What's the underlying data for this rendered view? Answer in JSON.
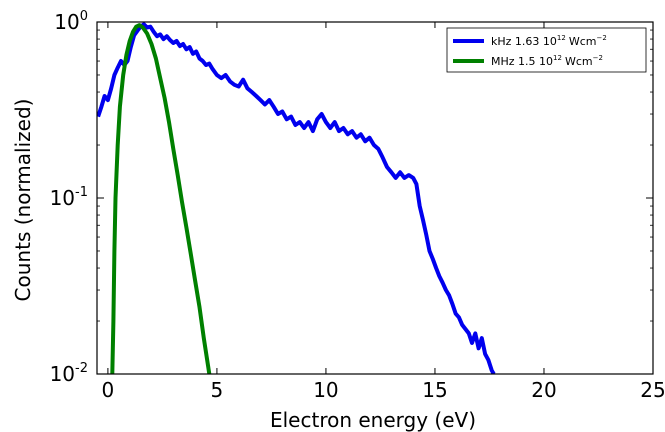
{
  "chart_data": {
    "type": "line",
    "title": "",
    "xlabel": "Electron energy (eV)",
    "ylabel": "Counts (normalized)",
    "xlim": [
      -0.5,
      25
    ],
    "ylim": [
      0.01,
      1.0
    ],
    "yscale": "log",
    "grid": false,
    "legend_position": "top-right",
    "x_ticks": [
      {
        "value": 0,
        "label": "0"
      },
      {
        "value": 5,
        "label": "5"
      },
      {
        "value": 10,
        "label": "10"
      },
      {
        "value": 15,
        "label": "15"
      },
      {
        "value": 20,
        "label": "20"
      },
      {
        "value": 25,
        "label": "25"
      }
    ],
    "y_ticks": [
      {
        "value": 1,
        "base": "10",
        "exp": "0"
      },
      {
        "value": 0.1,
        "base": "10",
        "exp": "-1"
      },
      {
        "value": 0.01,
        "base": "10",
        "exp": "-2"
      }
    ],
    "series": [
      {
        "name": "kHz 1.63 10",
        "name_sup": "12",
        "name_unit": "Wcm",
        "name_unit_sup": "−2",
        "color": "#0000ee",
        "points": [
          [
            -0.45,
            0.29
          ],
          [
            -0.3,
            0.33
          ],
          [
            -0.15,
            0.38
          ],
          [
            0,
            0.36
          ],
          [
            0.15,
            0.42
          ],
          [
            0.3,
            0.5
          ],
          [
            0.45,
            0.55
          ],
          [
            0.6,
            0.6
          ],
          [
            0.75,
            0.57
          ],
          [
            0.9,
            0.6
          ],
          [
            1.05,
            0.72
          ],
          [
            1.2,
            0.84
          ],
          [
            1.35,
            0.89
          ],
          [
            1.5,
            0.94
          ],
          [
            1.65,
            0.97
          ],
          [
            1.8,
            0.93
          ],
          [
            1.95,
            0.94
          ],
          [
            2.1,
            0.88
          ],
          [
            2.25,
            0.83
          ],
          [
            2.4,
            0.85
          ],
          [
            2.55,
            0.8
          ],
          [
            2.7,
            0.83
          ],
          [
            2.85,
            0.79
          ],
          [
            3.0,
            0.76
          ],
          [
            3.15,
            0.78
          ],
          [
            3.3,
            0.73
          ],
          [
            3.45,
            0.75
          ],
          [
            3.6,
            0.7
          ],
          [
            3.75,
            0.72
          ],
          [
            3.9,
            0.66
          ],
          [
            4.05,
            0.68
          ],
          [
            4.2,
            0.62
          ],
          [
            4.35,
            0.6
          ],
          [
            4.5,
            0.57
          ],
          [
            4.65,
            0.58
          ],
          [
            4.8,
            0.54
          ],
          [
            5.0,
            0.5
          ],
          [
            5.2,
            0.48
          ],
          [
            5.4,
            0.5
          ],
          [
            5.6,
            0.46
          ],
          [
            5.8,
            0.44
          ],
          [
            6.0,
            0.43
          ],
          [
            6.2,
            0.47
          ],
          [
            6.4,
            0.42
          ],
          [
            6.6,
            0.4
          ],
          [
            6.8,
            0.38
          ],
          [
            7.0,
            0.36
          ],
          [
            7.2,
            0.34
          ],
          [
            7.4,
            0.36
          ],
          [
            7.6,
            0.33
          ],
          [
            7.8,
            0.3
          ],
          [
            8.0,
            0.31
          ],
          [
            8.2,
            0.28
          ],
          [
            8.4,
            0.29
          ],
          [
            8.6,
            0.26
          ],
          [
            8.8,
            0.27
          ],
          [
            9.0,
            0.25
          ],
          [
            9.2,
            0.27
          ],
          [
            9.4,
            0.24
          ],
          [
            9.6,
            0.28
          ],
          [
            9.8,
            0.3
          ],
          [
            10.0,
            0.27
          ],
          [
            10.2,
            0.25
          ],
          [
            10.4,
            0.27
          ],
          [
            10.6,
            0.24
          ],
          [
            10.8,
            0.25
          ],
          [
            11.0,
            0.23
          ],
          [
            11.2,
            0.24
          ],
          [
            11.4,
            0.22
          ],
          [
            11.6,
            0.23
          ],
          [
            11.8,
            0.21
          ],
          [
            12.0,
            0.22
          ],
          [
            12.2,
            0.2
          ],
          [
            12.4,
            0.19
          ],
          [
            12.6,
            0.17
          ],
          [
            12.8,
            0.15
          ],
          [
            13.0,
            0.14
          ],
          [
            13.2,
            0.13
          ],
          [
            13.4,
            0.14
          ],
          [
            13.6,
            0.13
          ],
          [
            13.8,
            0.135
          ],
          [
            14.0,
            0.13
          ],
          [
            14.15,
            0.12
          ],
          [
            14.3,
            0.09
          ],
          [
            14.45,
            0.075
          ],
          [
            14.6,
            0.062
          ],
          [
            14.75,
            0.05
          ],
          [
            14.9,
            0.045
          ],
          [
            15.05,
            0.04
          ],
          [
            15.2,
            0.036
          ],
          [
            15.35,
            0.033
          ],
          [
            15.5,
            0.03
          ],
          [
            15.65,
            0.028
          ],
          [
            15.8,
            0.025
          ],
          [
            15.95,
            0.022
          ],
          [
            16.1,
            0.021
          ],
          [
            16.25,
            0.019
          ],
          [
            16.4,
            0.018
          ],
          [
            16.55,
            0.017
          ],
          [
            16.7,
            0.015
          ],
          [
            16.85,
            0.017
          ],
          [
            17.0,
            0.014
          ],
          [
            17.15,
            0.016
          ],
          [
            17.3,
            0.013
          ],
          [
            17.45,
            0.012
          ],
          [
            17.6,
            0.0105
          ],
          [
            17.7,
            0.01
          ]
        ]
      },
      {
        "name": "MHz 1.5 10",
        "name_sup": "12",
        "name_unit": "Wcm",
        "name_unit_sup": "−2",
        "color": "#008000",
        "points": [
          [
            0.2,
            0.01
          ],
          [
            0.25,
            0.02
          ],
          [
            0.3,
            0.05
          ],
          [
            0.35,
            0.1
          ],
          [
            0.45,
            0.2
          ],
          [
            0.55,
            0.33
          ],
          [
            0.7,
            0.5
          ],
          [
            0.85,
            0.65
          ],
          [
            1.0,
            0.78
          ],
          [
            1.15,
            0.88
          ],
          [
            1.3,
            0.94
          ],
          [
            1.45,
            0.96
          ],
          [
            1.6,
            0.93
          ],
          [
            1.8,
            0.86
          ],
          [
            2.0,
            0.75
          ],
          [
            2.2,
            0.62
          ],
          [
            2.4,
            0.48
          ],
          [
            2.6,
            0.37
          ],
          [
            2.8,
            0.27
          ],
          [
            3.0,
            0.19
          ],
          [
            3.2,
            0.135
          ],
          [
            3.4,
            0.095
          ],
          [
            3.6,
            0.068
          ],
          [
            3.8,
            0.048
          ],
          [
            4.0,
            0.034
          ],
          [
            4.2,
            0.024
          ],
          [
            4.4,
            0.016
          ],
          [
            4.6,
            0.011
          ],
          [
            4.65,
            0.01
          ]
        ]
      }
    ]
  }
}
